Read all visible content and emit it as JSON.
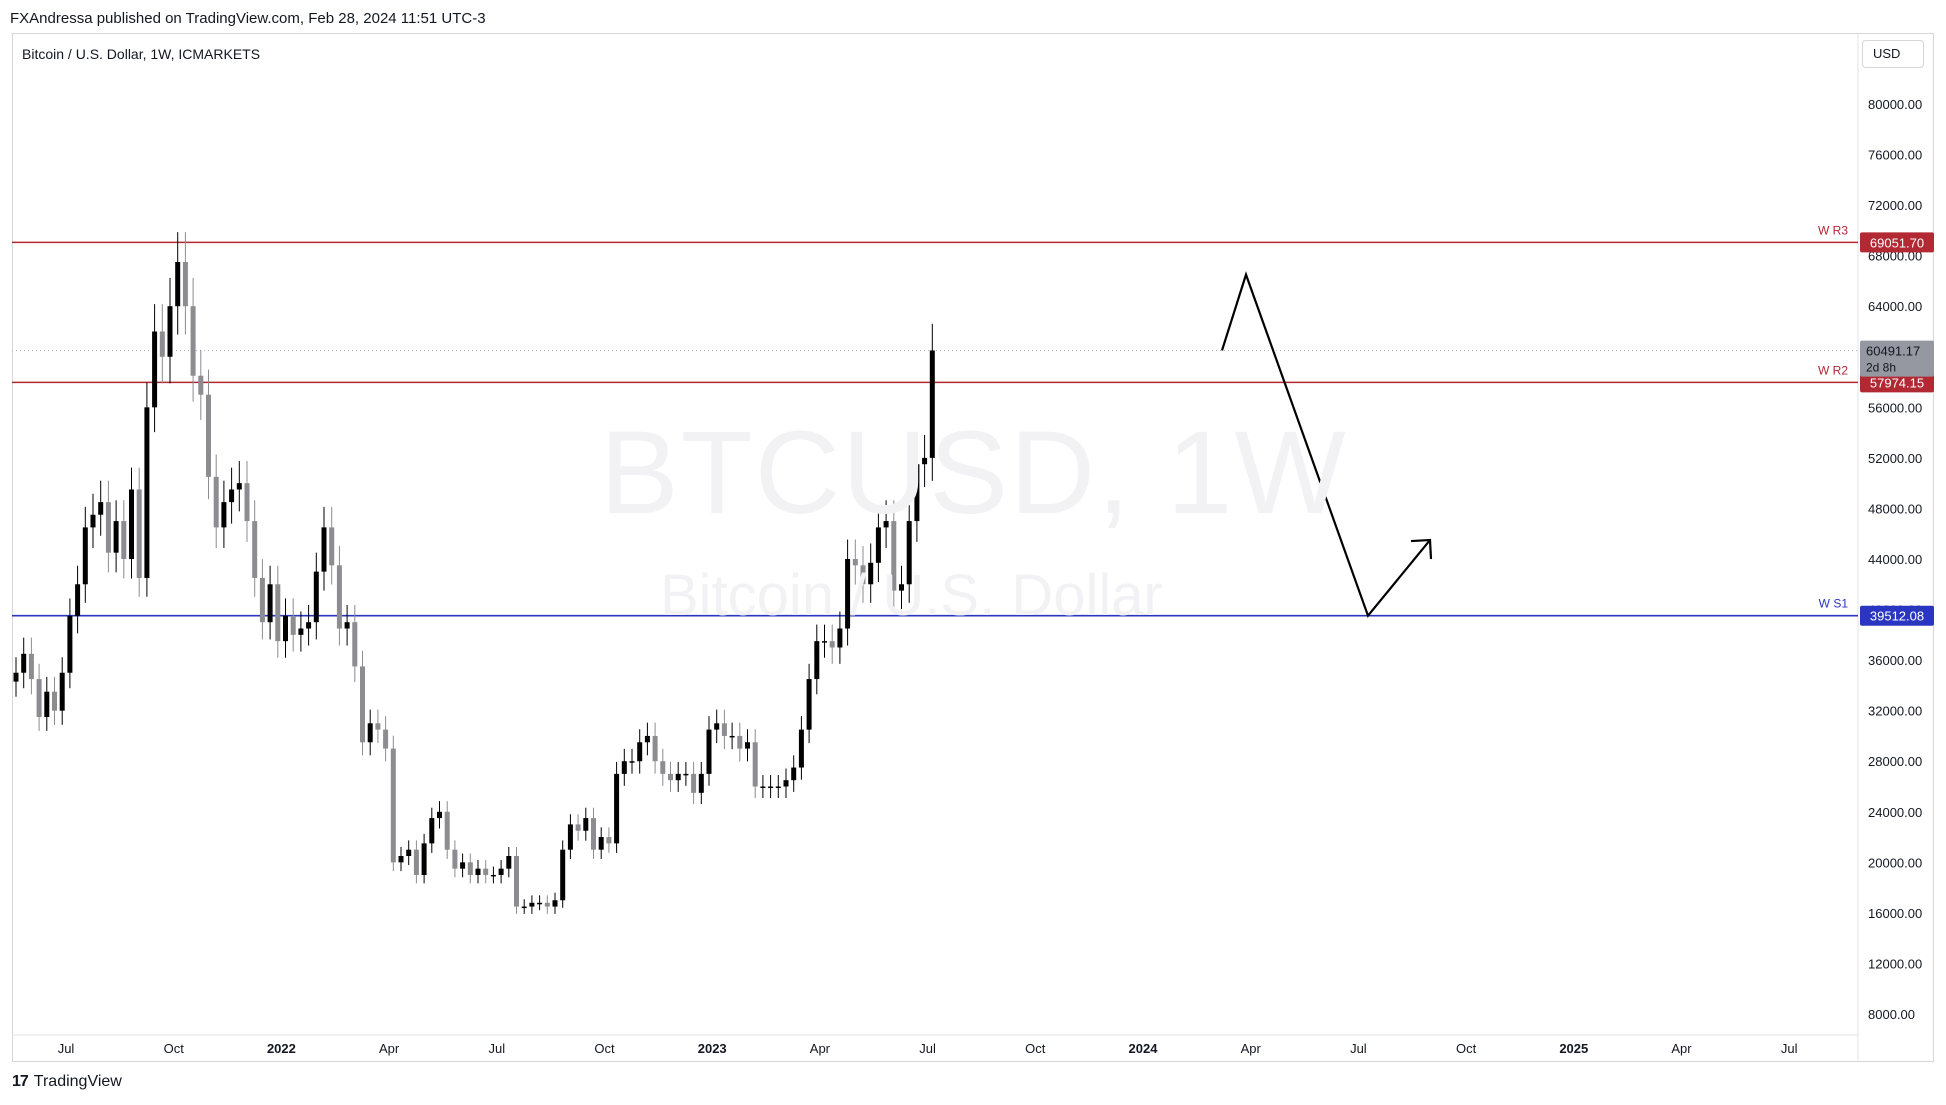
{
  "header": {
    "published": "FXAndressa published on TradingView.com, Feb 28, 2024 11:51 UTC-3"
  },
  "symbol_title": "Bitcoin / U.S. Dollar, 1W, ICMARKETS",
  "currency": "USD",
  "watermark": {
    "ticker": "BTCUSD, 1W",
    "name": "Bitcoin / U.S. Dollar"
  },
  "footer": {
    "logo_mark": "17",
    "logo_text": "TradingView"
  },
  "colors": {
    "bull": "#000000",
    "bear": "#8c8c91",
    "resistance": "#b22833",
    "support": "#2a36c2",
    "price_tag": "#9598a1",
    "axis_text": "#131722"
  },
  "chart_data": {
    "type": "candlestick",
    "title": "Bitcoin / U.S. Dollar, 1W, ICMARKETS",
    "y_axis": {
      "ticks": [
        "80000.00",
        "76000.00",
        "72000.00",
        "68000.00",
        "64000.00",
        "60000.00",
        "56000.00",
        "52000.00",
        "48000.00",
        "44000.00",
        "40000.00",
        "36000.00",
        "32000.00",
        "28000.00",
        "24000.00",
        "20000.00",
        "16000.00",
        "12000.00",
        "8000.00"
      ],
      "range": [
        6000,
        84000
      ],
      "side": "right"
    },
    "x_axis": {
      "labels": [
        "Jul",
        "Oct",
        "2022",
        "Apr",
        "Jul",
        "Oct",
        "2023",
        "Apr",
        "Jul",
        "Oct",
        "2024",
        "Apr",
        "Jul",
        "Oct",
        "2025",
        "Apr",
        "Jul"
      ],
      "bold": [
        "2022",
        "2023",
        "2024",
        "2025"
      ]
    },
    "levels": [
      {
        "label": "W R3",
        "value": 69051.7,
        "value_text": "69051.70",
        "kind": "resistance"
      },
      {
        "label": "W R2",
        "value": 57974.15,
        "value_text": "57974.15",
        "kind": "resistance"
      },
      {
        "label": "W S1",
        "value": 39512.08,
        "value_text": "39512.08",
        "kind": "support"
      }
    ],
    "last_price": {
      "value": 60491.17,
      "value_text": "60491.17",
      "countdown": "2d 8h"
    },
    "closes": [
      35000,
      36500,
      34500,
      31500,
      33500,
      32000,
      35000,
      39500,
      42000,
      46500,
      47500,
      48500,
      44500,
      47000,
      44000,
      49500,
      42500,
      56000,
      62000,
      60000,
      64000,
      67500,
      64000,
      58500,
      57000,
      50500,
      46500,
      48500,
      49500,
      50000,
      47000,
      42500,
      39000,
      42000,
      37500,
      39500,
      38000,
      38500,
      39000,
      43000,
      46500,
      43500,
      38500,
      39000,
      35500,
      29500,
      31000,
      30500,
      29000,
      20000,
      20500,
      21000,
      19000,
      21500,
      23500,
      24000,
      21000,
      19500,
      20000,
      19000,
      19500,
      19000,
      19000,
      19500,
      20500,
      16500,
      16500,
      16800,
      16800,
      16500,
      17000,
      21000,
      23000,
      22500,
      23500,
      21000,
      22000,
      21500,
      27000,
      28000,
      28000,
      29500,
      30000,
      28000,
      27000,
      26500,
      27000,
      27000,
      25500,
      27000,
      30500,
      31000,
      30000,
      30000,
      29000,
      29500,
      26000,
      26000,
      26000,
      26000,
      26500,
      27500,
      30500,
      34500,
      37500,
      37500,
      37000,
      38500,
      44000,
      43500,
      42000,
      43700,
      46500,
      47000,
      41500,
      42000,
      47000,
      51500,
      52000,
      60500
    ],
    "projection": [
      60500,
      66500,
      39512,
      45500
    ],
    "price_axis_unit": "USD"
  }
}
